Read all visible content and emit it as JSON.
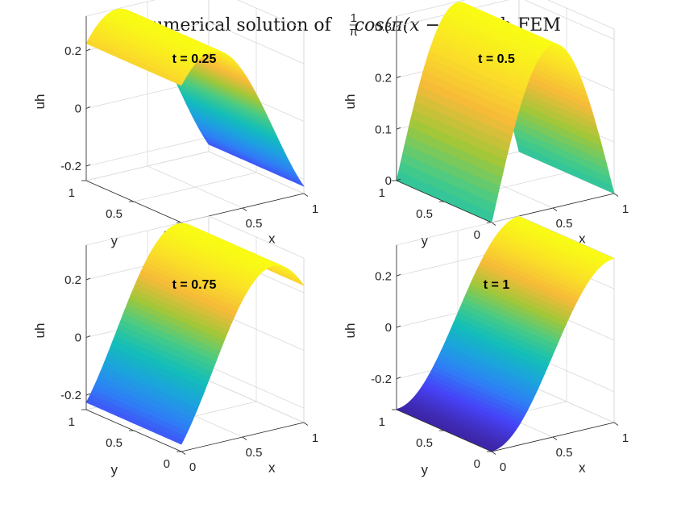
{
  "figure": {
    "title_prefix": "numerical solution of ",
    "title_frac_num": "1",
    "title_frac_den": "π",
    "title_func": "cos(π(x − t))",
    "title_suffix": " with FEM"
  },
  "colormap": [
    "#3e26a8",
    "#4743f8",
    "#2f7ef6",
    "#1ca3de",
    "#13beb8",
    "#48cb86",
    "#a2c739",
    "#f6ba39",
    "#fadf28",
    "#f9fb15"
  ],
  "chart_data": [
    {
      "type": "surface",
      "title": "t = 0.25",
      "t": 0.25,
      "function": "(1/pi)*cos(pi*(x - t))",
      "xlabel": "x",
      "ylabel": "y",
      "zlabel": "uh",
      "xlim": [
        0,
        1
      ],
      "ylim": [
        0,
        1
      ],
      "zlim": [
        -0.25,
        0.32
      ],
      "xticks": [
        "0",
        "0.5",
        "1"
      ],
      "yticks": [
        "0",
        "0.5",
        "1"
      ],
      "zticks": [
        "-0.2",
        "0",
        "0.2"
      ],
      "zticks_values": [
        -0.2,
        0,
        0.2
      ]
    },
    {
      "type": "surface",
      "title": "t = 0.5",
      "t": 0.5,
      "function": "(1/pi)*cos(pi*(x - t))",
      "xlabel": "x",
      "ylabel": "y",
      "zlabel": "uh",
      "xlim": [
        0,
        1
      ],
      "ylim": [
        0,
        1
      ],
      "zlim": [
        0,
        0.32
      ],
      "xticks": [
        "0",
        "0.5",
        "1"
      ],
      "yticks": [
        "0",
        "0.5",
        "1"
      ],
      "zticks": [
        "0",
        "0.1",
        "0.2",
        "0.3"
      ],
      "zticks_values": [
        0,
        0.1,
        0.2,
        0.3
      ]
    },
    {
      "type": "surface",
      "title": "t = 0.75",
      "t": 0.75,
      "function": "(1/pi)*cos(pi*(x - t))",
      "xlabel": "x",
      "ylabel": "y",
      "zlabel": "uh",
      "xlim": [
        0,
        1
      ],
      "ylim": [
        0,
        1
      ],
      "zlim": [
        -0.25,
        0.32
      ],
      "xticks": [
        "0",
        "0.5",
        "1"
      ],
      "yticks": [
        "0",
        "0.5",
        "1"
      ],
      "zticks": [
        "-0.2",
        "0",
        "0.2"
      ],
      "zticks_values": [
        -0.2,
        0,
        0.2
      ]
    },
    {
      "type": "surface",
      "title": "t = 1",
      "t": 1,
      "function": "(1/pi)*cos(pi*(x - t))",
      "xlabel": "x",
      "ylabel": "y",
      "zlabel": "uh",
      "xlim": [
        0,
        1
      ],
      "ylim": [
        0,
        1
      ],
      "zlim": [
        -0.32,
        0.32
      ],
      "xticks": [
        "0",
        "0.5",
        "1"
      ],
      "yticks": [
        "0",
        "0.5",
        "1"
      ],
      "zticks": [
        "-0.2",
        "0",
        "0.2"
      ],
      "zticks_values": [
        -0.2,
        0,
        0.2
      ]
    }
  ]
}
